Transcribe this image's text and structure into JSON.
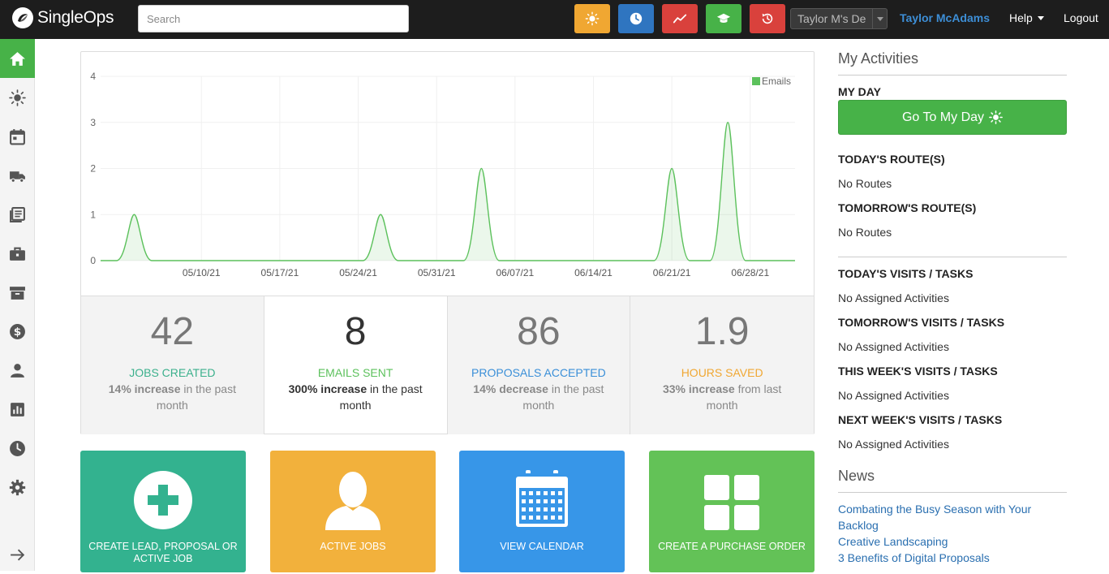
{
  "brand": {
    "name": "SingleOps"
  },
  "search": {
    "placeholder": "Search"
  },
  "toolbar": {
    "buttons": [
      {
        "icon": "sun-icon",
        "color": "#f0a732"
      },
      {
        "icon": "clock-icon",
        "color": "#2f75c0"
      },
      {
        "icon": "trend-icon",
        "color": "#d9413c"
      },
      {
        "icon": "graduation-cap-icon",
        "color": "#47b248"
      },
      {
        "icon": "history-icon",
        "color": "#d9413c"
      }
    ],
    "account": "Taylor M's De",
    "user": "Taylor McAdams",
    "help": "Help",
    "logout": "Logout"
  },
  "sidebar": {
    "items": [
      {
        "icon": "home-icon",
        "active": true
      },
      {
        "icon": "sun-icon"
      },
      {
        "icon": "calendar-icon"
      },
      {
        "icon": "truck-icon"
      },
      {
        "icon": "list-icon"
      },
      {
        "icon": "briefcase-icon"
      },
      {
        "icon": "archive-icon"
      },
      {
        "icon": "dollar-icon"
      },
      {
        "icon": "person-icon"
      },
      {
        "icon": "bar-chart-icon"
      },
      {
        "icon": "clock-icon"
      },
      {
        "icon": "gear-icon"
      },
      {
        "icon": "arrow-right-icon"
      }
    ]
  },
  "chart_data": {
    "type": "area",
    "title": "",
    "xlabel": "",
    "ylabel": "",
    "ylim": [
      0,
      4
    ],
    "yticks": [
      "0",
      "1",
      "2",
      "3",
      "4"
    ],
    "xticks": [
      "05/10/21",
      "05/17/21",
      "05/24/21",
      "05/31/21",
      "06/07/21",
      "06/14/21",
      "06/21/21",
      "06/28/21"
    ],
    "legend": "top-right",
    "grid": true,
    "series": [
      {
        "name": "Emails",
        "color": "#5cc15c",
        "points": [
          {
            "x": "05/04/21",
            "y": 1
          },
          {
            "x": "05/26/21",
            "y": 1
          },
          {
            "x": "06/04/21",
            "y": 2
          },
          {
            "x": "06/21/21",
            "y": 2
          },
          {
            "x": "06/26/21",
            "y": 3
          }
        ]
      }
    ]
  },
  "stats": [
    {
      "value": "42",
      "label": "JOBS CREATED",
      "color": "#3bb08c",
      "strong": "14% increase",
      "rest": " in the past month"
    },
    {
      "value": "8",
      "label": "EMAILS SENT",
      "color": "#5cc15c",
      "strong": "300% increase",
      "rest": " in the past month"
    },
    {
      "value": "86",
      "label": "PROPOSALS ACCEPTED",
      "color": "#3a8fd8",
      "strong": "14% decrease",
      "rest": " in the past month"
    },
    {
      "value": "1.9",
      "label": "HOURS SAVED",
      "color": "#f0a732",
      "strong": "33% increase",
      "rest": " from last month"
    }
  ],
  "tiles": [
    {
      "label": "CREATE LEAD, PROPOSAL OR ACTIVE JOB",
      "color": "#33b28f",
      "icon": "plus-circle-icon"
    },
    {
      "label": "ACTIVE JOBS",
      "color": "#f2b13c",
      "icon": "person-icon"
    },
    {
      "label": "VIEW CALENDAR",
      "color": "#3796e8",
      "icon": "calendar-icon"
    },
    {
      "label": "CREATE A PURCHASE ORDER",
      "color": "#63c257",
      "icon": "grid-icon"
    }
  ],
  "activities": {
    "title": "My Activities",
    "my_day": "MY DAY",
    "go_button": "Go To My Day",
    "todays_routes": "TODAY'S ROUTE(S)",
    "todays_routes_val": "No Routes",
    "tomorrows_routes": "TOMORROW'S ROUTE(S)",
    "tomorrows_routes_val": "No Routes",
    "todays_visits": "TODAY'S VISITS / TASKS",
    "todays_visits_val": "No Assigned Activities",
    "tomorrows_visits": "TOMORROW'S VISITS / TASKS",
    "tomorrows_visits_val": "No Assigned Activities",
    "week_visits": "THIS WEEK'S VISITS / TASKS",
    "week_visits_val": "No Assigned Activities",
    "next_week_visits": "NEXT WEEK'S VISITS / TASKS",
    "next_week_visits_val": "No Assigned Activities"
  },
  "news": {
    "title": "News",
    "items": [
      "Combating the Busy Season with Your Backlog",
      "Creative Landscaping",
      "3 Benefits of Digital Proposals"
    ]
  }
}
